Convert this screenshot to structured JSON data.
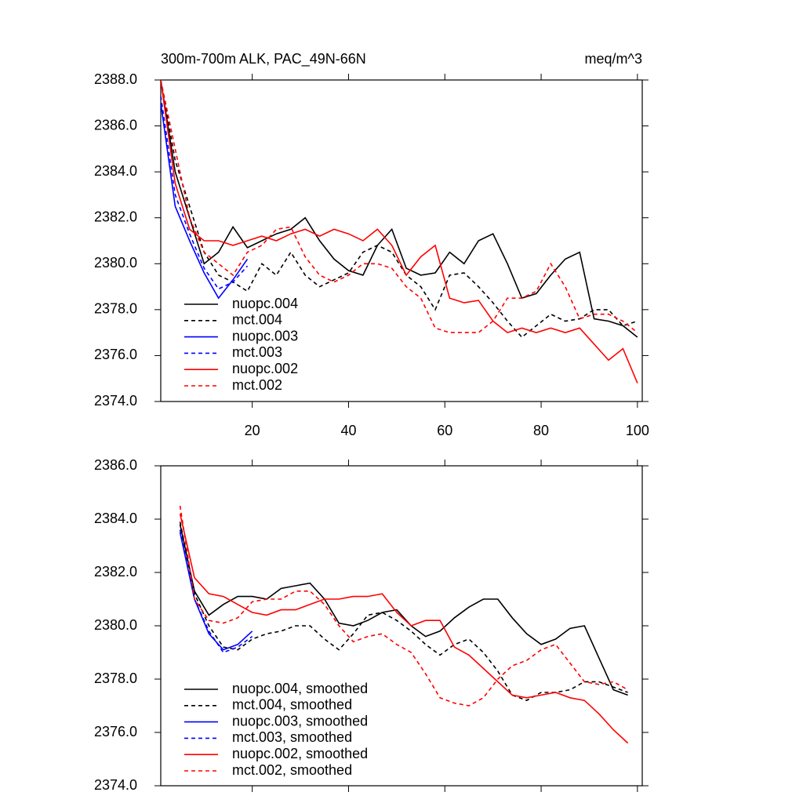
{
  "chart_data": [
    {
      "type": "line",
      "title": "300m-700m ALK, PAC_49N-66N",
      "units": "meq/m^3",
      "x": [
        1,
        4,
        7,
        10,
        13,
        16,
        19,
        22,
        25,
        28,
        31,
        34,
        37,
        40,
        43,
        46,
        49,
        52,
        55,
        58,
        61,
        64,
        67,
        70,
        73,
        76,
        79,
        82,
        85,
        88,
        91,
        94,
        97,
        100
      ],
      "series": [
        {
          "name": "nuopc.004",
          "color": "#000000",
          "dashed": false,
          "values": [
            2388,
            2384,
            2382,
            2380,
            2380.5,
            2381.6,
            2380.7,
            2381,
            2381.3,
            2381.5,
            2382,
            2381,
            2380.2,
            2379.7,
            2379.5,
            2380.8,
            2381.5,
            2379.8,
            2379.5,
            2379.6,
            2380.5,
            2380,
            2381,
            2381.3,
            2380,
            2378.5,
            2378.7,
            2379.5,
            2380.2,
            2380.5,
            2377.6,
            2377.5,
            2377.3,
            2376.8
          ]
        },
        {
          "name": "mct.004",
          "color": "#000000",
          "dashed": true,
          "values": [
            2388,
            2384.5,
            2382.5,
            2380.5,
            2379.5,
            2379.2,
            2378.8,
            2380,
            2379.5,
            2380.5,
            2379.5,
            2379,
            2379.3,
            2379.6,
            2380.5,
            2380.8,
            2380.5,
            2379.5,
            2379,
            2378,
            2379.5,
            2379.6,
            2379,
            2378.3,
            2377.5,
            2376.8,
            2377.3,
            2377.8,
            2377.5,
            2377.6,
            2378,
            2378,
            2377.3,
            2377.5
          ]
        },
        {
          "name": "nuopc.003",
          "color": "#0000ff",
          "dashed": false,
          "values": [
            2387,
            2382.5,
            2381,
            2379.6,
            2378.5,
            2379.3,
            2380.2,
            null,
            null,
            null,
            null,
            null,
            null,
            null,
            null,
            null,
            null,
            null,
            null,
            null,
            null,
            null,
            null,
            null,
            null,
            null,
            null,
            null,
            null,
            null,
            null,
            null,
            null,
            null
          ]
        },
        {
          "name": "mct.003",
          "color": "#0000ff",
          "dashed": true,
          "values": [
            2387.3,
            2383,
            2381.3,
            2379.8,
            2378.9,
            2379.2,
            2379.9,
            null,
            null,
            null,
            null,
            null,
            null,
            null,
            null,
            null,
            null,
            null,
            null,
            null,
            null,
            null,
            null,
            null,
            null,
            null,
            null,
            null,
            null,
            null,
            null,
            null,
            null,
            null
          ]
        },
        {
          "name": "nuopc.002",
          "color": "#ff0000",
          "dashed": false,
          "values": [
            2388,
            2383.5,
            2381.5,
            2381,
            2381,
            2380.8,
            2381,
            2381.2,
            2381,
            2381.3,
            2381.5,
            2381.2,
            2381.5,
            2381.3,
            2381,
            2381.5,
            2380.8,
            2379.5,
            2380.3,
            2380.8,
            2378.5,
            2378.3,
            2378.4,
            2377.5,
            2377,
            2377.2,
            2377,
            2377.2,
            2377,
            2377.2,
            2376.5,
            2375.8,
            2376.3,
            2374.8
          ]
        },
        {
          "name": "mct.002",
          "color": "#ff0000",
          "dashed": true,
          "values": [
            2388,
            2385,
            2382,
            2380.5,
            2380,
            2379.5,
            2380.5,
            2380.8,
            2381.5,
            2381.6,
            2380.3,
            2379.5,
            2379.2,
            2379.5,
            2380,
            2380,
            2379.8,
            2379,
            2378.5,
            2377.2,
            2377,
            2377,
            2377,
            2377.5,
            2378.5,
            2378.5,
            2378.8,
            2380,
            2379,
            2377.6,
            2377.8,
            2377.8,
            2377.5,
            2377
          ]
        }
      ],
      "xlim": [
        1,
        101
      ],
      "xticks": [
        20,
        40,
        60,
        80,
        100
      ],
      "ylim": [
        2374,
        2388
      ],
      "yticks": [
        {
          "value": 2374,
          "label": "2374.0"
        },
        {
          "value": 2376,
          "label": "2376.0"
        },
        {
          "value": 2378,
          "label": "2378.0"
        },
        {
          "value": 2380,
          "label": "2380.0"
        },
        {
          "value": 2382,
          "label": "2382.0"
        },
        {
          "value": 2384,
          "label": "2384.0"
        },
        {
          "value": 2386,
          "label": "2386.0"
        },
        {
          "value": 2388,
          "label": "2388.0"
        }
      ],
      "legend": "lower left"
    },
    {
      "type": "line",
      "x": [
        5,
        8,
        11,
        14,
        17,
        20,
        23,
        26,
        29,
        32,
        35,
        38,
        41,
        44,
        47,
        50,
        53,
        56,
        59,
        62,
        65,
        68,
        71,
        74,
        77,
        80,
        83,
        86,
        89,
        92,
        95,
        98
      ],
      "series": [
        {
          "name": "nuopc.004, smoothed",
          "color": "#000000",
          "dashed": false,
          "values": [
            2383.8,
            2381.3,
            2380.4,
            2380.8,
            2381.1,
            2381.1,
            2381,
            2381.4,
            2381.5,
            2381.6,
            2381,
            2380.1,
            2380,
            2380.2,
            2380.5,
            2380.6,
            2380,
            2379.6,
            2379.8,
            2380.3,
            2380.7,
            2381,
            2381,
            2380.3,
            2379.7,
            2379.3,
            2379.5,
            2379.9,
            2380,
            2378.8,
            2377.6,
            2377.4
          ]
        },
        {
          "name": "mct.004, smoothed",
          "color": "#000000",
          "dashed": true,
          "values": [
            2383.9,
            2381.2,
            2380,
            2379.2,
            2379.1,
            2379.5,
            2379.7,
            2379.8,
            2380,
            2380,
            2379.5,
            2379.1,
            2379.7,
            2380.4,
            2380.5,
            2380.2,
            2379.8,
            2379.3,
            2378.9,
            2379.3,
            2379.5,
            2379,
            2378.3,
            2377.4,
            2377.2,
            2377.5,
            2377.5,
            2377.6,
            2377.9,
            2377.9,
            2377.7,
            2377.5
          ]
        },
        {
          "name": "nuopc.003, smoothed",
          "color": "#0000ff",
          "dashed": false,
          "values": [
            2383.5,
            2381,
            2379.7,
            2379.1,
            2379.3,
            2379.8,
            null,
            null,
            null,
            null,
            null,
            null,
            null,
            null,
            null,
            null,
            null,
            null,
            null,
            null,
            null,
            null,
            null,
            null,
            null,
            null,
            null,
            null,
            null,
            null,
            null,
            null
          ]
        },
        {
          "name": "mct.003, smoothed",
          "color": "#0000ff",
          "dashed": true,
          "values": [
            2383.6,
            2381,
            2379.8,
            2379,
            2379.2,
            2379.6,
            null,
            null,
            null,
            null,
            null,
            null,
            null,
            null,
            null,
            null,
            null,
            null,
            null,
            null,
            null,
            null,
            null,
            null,
            null,
            null,
            null,
            null,
            null,
            null,
            null,
            null
          ]
        },
        {
          "name": "nuopc.002, smoothed",
          "color": "#ff0000",
          "dashed": false,
          "values": [
            2384.2,
            2381.8,
            2381.2,
            2381.1,
            2380.8,
            2380.5,
            2380.4,
            2380.6,
            2380.6,
            2380.8,
            2381,
            2381,
            2381.1,
            2381.1,
            2381.2,
            2380.5,
            2380,
            2380.2,
            2380.2,
            2379.2,
            2378.9,
            2378.4,
            2377.9,
            2377.4,
            2377.3,
            2377.4,
            2377.5,
            2377.3,
            2377.2,
            2376.7,
            2376.1,
            2375.6
          ]
        },
        {
          "name": "mct.002, smoothed",
          "color": "#ff0000",
          "dashed": true,
          "values": [
            2384.5,
            2381,
            2380.2,
            2380.1,
            2380.3,
            2380.9,
            2381,
            2381,
            2381.3,
            2381.3,
            2380.8,
            2380,
            2379.4,
            2379.6,
            2379.7,
            2379.3,
            2379,
            2378.2,
            2377.3,
            2377.1,
            2377,
            2377.3,
            2378,
            2378.5,
            2378.7,
            2379.1,
            2379.3,
            2378.6,
            2377.9,
            2377.8,
            2377.9,
            2377.6
          ]
        }
      ],
      "xlim": [
        1,
        101
      ],
      "xticks": [
        20,
        40,
        60,
        80,
        100
      ],
      "ylim": [
        2374,
        2386
      ],
      "yticks": [
        {
          "value": 2374,
          "label": "2374.0"
        },
        {
          "value": 2376,
          "label": "2376.0"
        },
        {
          "value": 2378,
          "label": "2378.0"
        },
        {
          "value": 2380,
          "label": "2380.0"
        },
        {
          "value": 2382,
          "label": "2382.0"
        },
        {
          "value": 2384,
          "label": "2384.0"
        },
        {
          "value": 2386,
          "label": "2386.0"
        }
      ],
      "legend": "lower left"
    }
  ]
}
